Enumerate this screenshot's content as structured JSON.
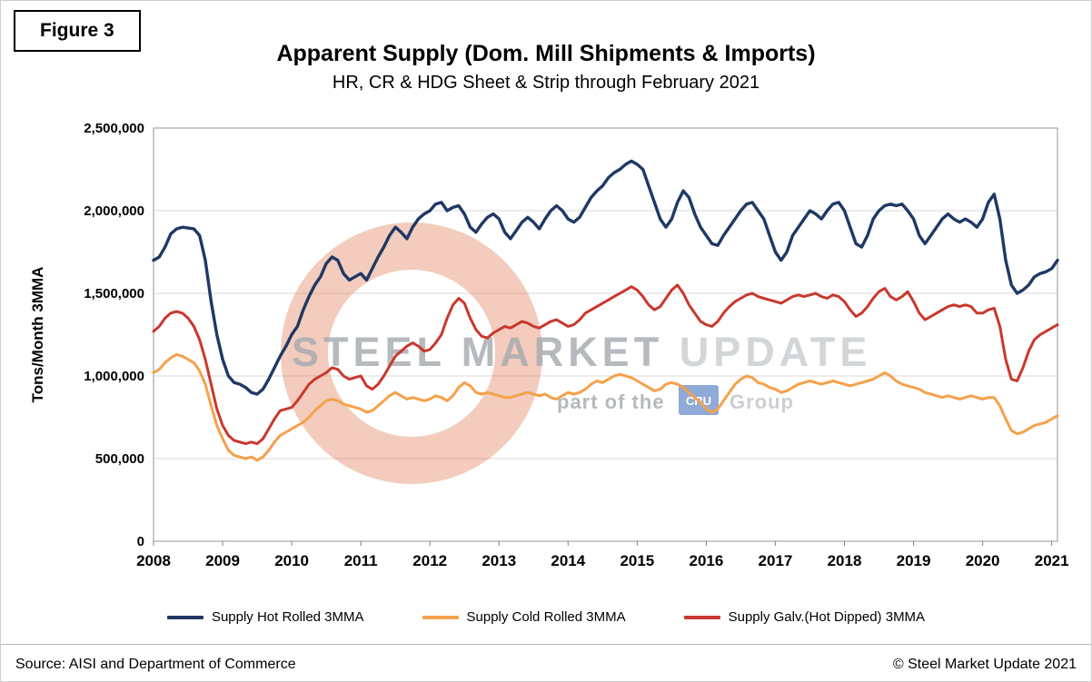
{
  "figure_label": "Figure 3",
  "title": "Apparent Supply (Dom. Mill Shipments & Imports)",
  "subtitle": "HR, CR & HDG Sheet & Strip through February 2021",
  "footer": {
    "source": "Source: AISI and Department of Commerce",
    "copyright": "© Steel Market Update 2021"
  },
  "watermark": {
    "main_text": "STEEL MARKET ",
    "main_text_light": "UPDATE",
    "sub_prefix": "part of the",
    "cru_badge": "CRU",
    "sub_suffix": "Group"
  },
  "colors": {
    "hot_rolled": "#1f3864",
    "cold_rolled": "#f5a14b",
    "galvanized": "#c9382e",
    "gridline": "#d9d9d9",
    "plot_border": "#a6a6a6",
    "watermark_ring": "#d95f33",
    "watermark_text": "#a2a7ad",
    "watermark_text_light": "#c6cacd",
    "cru_badge_blue": "#7d9bd1"
  },
  "chart_data": {
    "type": "line",
    "title": "Apparent Supply (Dom. Mill Shipments & Imports)",
    "subtitle": "HR, CR & HDG Sheet & Strip through February 2021",
    "xlabel": "",
    "ylabel": "Tons/Month 3MMA",
    "ylim": [
      0,
      2500000
    ],
    "yticks": [
      0,
      500000,
      1000000,
      1500000,
      2000000,
      2500000
    ],
    "ytick_labels": [
      "0",
      "500,000",
      "1,000,000",
      "1,500,000",
      "2,000,000",
      "2,500,000"
    ],
    "xticks": [
      2008,
      2009,
      2010,
      2011,
      2012,
      2013,
      2014,
      2015,
      2016,
      2017,
      2018,
      2019,
      2020,
      2021
    ],
    "x_start": "2008-01",
    "x_end": "2021-02",
    "frequency": "monthly",
    "grid": true,
    "legend_position": "bottom",
    "series": [
      {
        "name": "Supply Hot Rolled 3MMA",
        "color": "#1f3864",
        "values": [
          1700000,
          1720000,
          1780000,
          1860000,
          1890000,
          1900000,
          1895000,
          1890000,
          1850000,
          1700000,
          1450000,
          1250000,
          1100000,
          1000000,
          960000,
          950000,
          930000,
          900000,
          890000,
          920000,
          980000,
          1050000,
          1120000,
          1180000,
          1250000,
          1300000,
          1400000,
          1480000,
          1550000,
          1600000,
          1680000,
          1720000,
          1700000,
          1620000,
          1580000,
          1600000,
          1620000,
          1580000,
          1650000,
          1720000,
          1780000,
          1850000,
          1900000,
          1870000,
          1830000,
          1900000,
          1950000,
          1980000,
          2000000,
          2040000,
          2050000,
          2000000,
          2020000,
          2030000,
          1980000,
          1900000,
          1870000,
          1920000,
          1960000,
          1980000,
          1950000,
          1870000,
          1830000,
          1880000,
          1930000,
          1960000,
          1930000,
          1890000,
          1950000,
          2000000,
          2030000,
          2000000,
          1950000,
          1930000,
          1960000,
          2020000,
          2080000,
          2120000,
          2150000,
          2200000,
          2230000,
          2250000,
          2280000,
          2300000,
          2280000,
          2250000,
          2150000,
          2050000,
          1950000,
          1900000,
          1950000,
          2050000,
          2120000,
          2080000,
          1980000,
          1900000,
          1850000,
          1800000,
          1790000,
          1850000,
          1900000,
          1950000,
          2000000,
          2040000,
          2050000,
          2000000,
          1950000,
          1850000,
          1750000,
          1700000,
          1750000,
          1850000,
          1900000,
          1950000,
          2000000,
          1980000,
          1950000,
          2000000,
          2040000,
          2050000,
          2000000,
          1900000,
          1800000,
          1780000,
          1850000,
          1950000,
          2000000,
          2030000,
          2040000,
          2030000,
          2040000,
          2000000,
          1950000,
          1850000,
          1800000,
          1850000,
          1900000,
          1950000,
          1980000,
          1950000,
          1930000,
          1950000,
          1930000,
          1900000,
          1950000,
          2050000,
          2100000,
          1950000,
          1700000,
          1550000,
          1500000,
          1520000,
          1550000,
          1600000,
          1620000,
          1630000,
          1650000,
          1700000
        ]
      },
      {
        "name": "Supply Cold Rolled 3MMA",
        "color": "#f5a14b",
        "values": [
          1020000,
          1040000,
          1080000,
          1110000,
          1130000,
          1120000,
          1100000,
          1080000,
          1030000,
          950000,
          820000,
          700000,
          620000,
          550000,
          520000,
          510000,
          500000,
          510000,
          490000,
          510000,
          550000,
          600000,
          640000,
          660000,
          680000,
          700000,
          720000,
          750000,
          790000,
          820000,
          850000,
          860000,
          850000,
          830000,
          820000,
          810000,
          800000,
          780000,
          790000,
          820000,
          850000,
          880000,
          900000,
          880000,
          860000,
          870000,
          860000,
          850000,
          860000,
          880000,
          870000,
          850000,
          880000,
          930000,
          960000,
          940000,
          900000,
          890000,
          900000,
          890000,
          880000,
          870000,
          870000,
          880000,
          890000,
          900000,
          890000,
          880000,
          890000,
          870000,
          860000,
          880000,
          900000,
          890000,
          900000,
          920000,
          950000,
          970000,
          960000,
          980000,
          1000000,
          1010000,
          1000000,
          990000,
          970000,
          950000,
          930000,
          910000,
          920000,
          950000,
          960000,
          950000,
          930000,
          900000,
          870000,
          840000,
          800000,
          780000,
          800000,
          850000,
          900000,
          950000,
          980000,
          1000000,
          990000,
          960000,
          950000,
          930000,
          920000,
          900000,
          910000,
          930000,
          950000,
          960000,
          970000,
          960000,
          950000,
          960000,
          970000,
          960000,
          950000,
          940000,
          950000,
          960000,
          970000,
          980000,
          1000000,
          1020000,
          1000000,
          970000,
          950000,
          940000,
          930000,
          920000,
          900000,
          890000,
          880000,
          870000,
          880000,
          870000,
          860000,
          870000,
          880000,
          870000,
          860000,
          870000,
          870000,
          820000,
          740000,
          670000,
          650000,
          660000,
          680000,
          700000,
          710000,
          720000,
          740000,
          760000
        ]
      },
      {
        "name": "Supply Galv.(Hot Dipped) 3MMA",
        "color": "#c9382e",
        "values": [
          1270000,
          1300000,
          1350000,
          1380000,
          1390000,
          1380000,
          1350000,
          1300000,
          1220000,
          1100000,
          950000,
          800000,
          700000,
          640000,
          610000,
          600000,
          590000,
          600000,
          590000,
          620000,
          680000,
          740000,
          790000,
          800000,
          810000,
          850000,
          900000,
          950000,
          980000,
          1000000,
          1020000,
          1050000,
          1040000,
          1000000,
          980000,
          990000,
          1000000,
          940000,
          920000,
          950000,
          1000000,
          1060000,
          1120000,
          1150000,
          1180000,
          1200000,
          1180000,
          1150000,
          1160000,
          1200000,
          1250000,
          1350000,
          1430000,
          1470000,
          1440000,
          1350000,
          1280000,
          1240000,
          1230000,
          1260000,
          1280000,
          1300000,
          1290000,
          1310000,
          1330000,
          1320000,
          1300000,
          1290000,
          1310000,
          1330000,
          1340000,
          1320000,
          1300000,
          1310000,
          1340000,
          1380000,
          1400000,
          1420000,
          1440000,
          1460000,
          1480000,
          1500000,
          1520000,
          1540000,
          1520000,
          1480000,
          1430000,
          1400000,
          1420000,
          1470000,
          1520000,
          1550000,
          1500000,
          1430000,
          1380000,
          1330000,
          1310000,
          1300000,
          1330000,
          1380000,
          1420000,
          1450000,
          1470000,
          1490000,
          1500000,
          1480000,
          1470000,
          1460000,
          1450000,
          1440000,
          1460000,
          1480000,
          1490000,
          1480000,
          1490000,
          1500000,
          1480000,
          1470000,
          1490000,
          1480000,
          1450000,
          1400000,
          1360000,
          1380000,
          1420000,
          1470000,
          1510000,
          1530000,
          1480000,
          1460000,
          1480000,
          1510000,
          1450000,
          1380000,
          1340000,
          1360000,
          1380000,
          1400000,
          1420000,
          1430000,
          1420000,
          1430000,
          1420000,
          1380000,
          1380000,
          1400000,
          1410000,
          1300000,
          1100000,
          980000,
          970000,
          1050000,
          1150000,
          1220000,
          1250000,
          1270000,
          1290000,
          1310000
        ]
      }
    ]
  }
}
